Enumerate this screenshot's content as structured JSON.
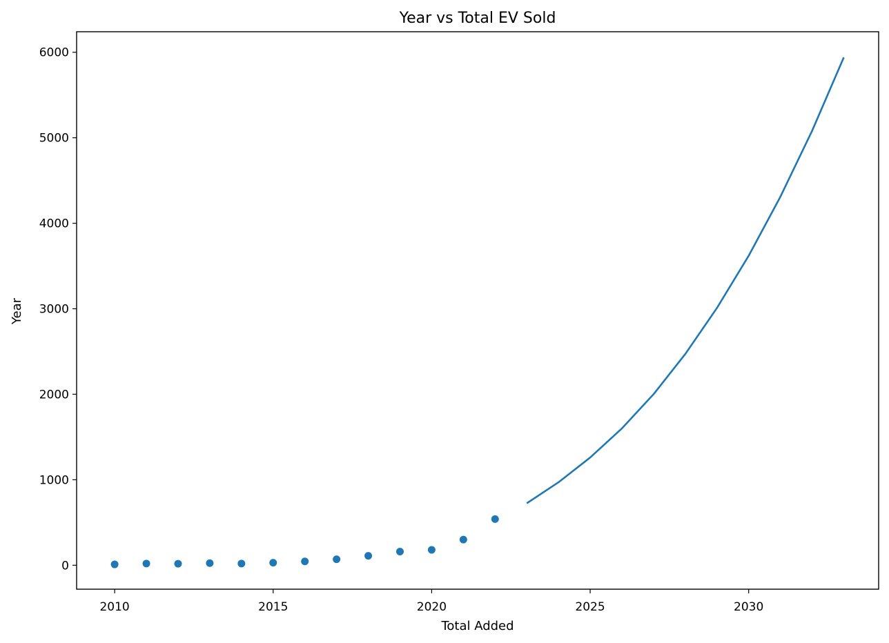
{
  "chart_data": {
    "type": "scatter",
    "title": "Year vs Total EV Sold",
    "xlabel": "Total Added",
    "ylabel": "Year",
    "xlim": [
      2008.8,
      2034.1
    ],
    "ylim": [
      -280,
      6240
    ],
    "xticks": [
      2010,
      2015,
      2020,
      2025,
      2030
    ],
    "yticks": [
      0,
      1000,
      2000,
      3000,
      4000,
      5000,
      6000
    ],
    "grid": false,
    "series_color": "#1f77b4",
    "series": [
      {
        "type": "scatter",
        "points": [
          {
            "x": 2010,
            "y": 10
          },
          {
            "x": 2011,
            "y": 20
          },
          {
            "x": 2012,
            "y": 18
          },
          {
            "x": 2013,
            "y": 25
          },
          {
            "x": 2014,
            "y": 20
          },
          {
            "x": 2015,
            "y": 30
          },
          {
            "x": 2016,
            "y": 45
          },
          {
            "x": 2017,
            "y": 70
          },
          {
            "x": 2018,
            "y": 110
          },
          {
            "x": 2019,
            "y": 160
          },
          {
            "x": 2020,
            "y": 180
          },
          {
            "x": 2021,
            "y": 300
          },
          {
            "x": 2022,
            "y": 540
          }
        ]
      },
      {
        "type": "line",
        "points": [
          {
            "x": 2023,
            "y": 725
          },
          {
            "x": 2024,
            "y": 970
          },
          {
            "x": 2025,
            "y": 1260
          },
          {
            "x": 2026,
            "y": 1600
          },
          {
            "x": 2027,
            "y": 2000
          },
          {
            "x": 2028,
            "y": 2470
          },
          {
            "x": 2029,
            "y": 3010
          },
          {
            "x": 2030,
            "y": 3620
          },
          {
            "x": 2031,
            "y": 4310
          },
          {
            "x": 2032,
            "y": 5080
          },
          {
            "x": 2033,
            "y": 5940
          }
        ]
      }
    ]
  }
}
